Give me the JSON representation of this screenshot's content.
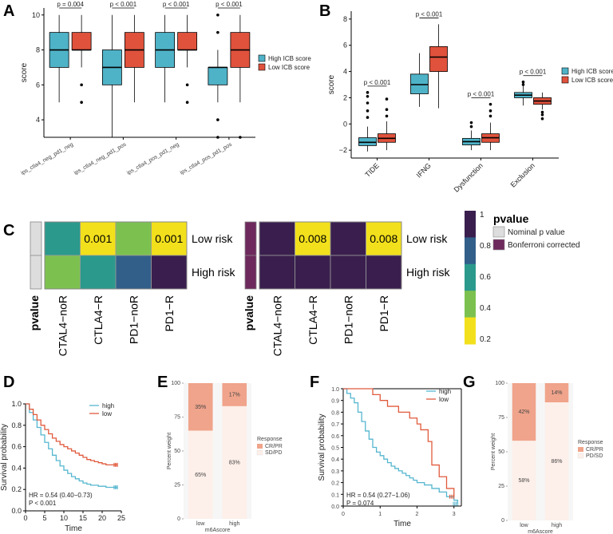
{
  "colors": {
    "high_icb": "#4fb3c8",
    "low_icb": "#e0523c",
    "km_high": "#55b6cf",
    "km_low": "#e05a3d",
    "crpr": "#f0a48b",
    "sdpd": "#fdefe9",
    "heat_yellow": "#f2e01c",
    "heat_green": "#7cc150",
    "heat_teal": "#2b9a8c",
    "heat_blue": "#325f8a",
    "heat_dark": "#3a1f4e",
    "pvalue_gray": "#dddddd",
    "pvalue_purple": "#6e2a5c"
  },
  "chart_data": [
    {
      "panel": "A",
      "type": "box",
      "ylabel": "score",
      "ylim": [
        3,
        10.4
      ],
      "yticks": [
        "4",
        "6",
        "8",
        "10"
      ],
      "categories": [
        "ips_ctla4_neg_pd1_neg",
        "ips_ctla4_neg_pd1_pos",
        "ips_ctla4_pos_pd1_neg",
        "ips_ctla4_pos_pd1_pos"
      ],
      "pvalues": [
        "p = 0.004",
        "p < 0.001",
        "p < 0.001",
        "p < 0.001"
      ],
      "legend": [
        "High ICB score",
        "Low ICB score"
      ],
      "series": [
        {
          "name": "High ICB score",
          "boxes": [
            {
              "min": 5,
              "q1": 7,
              "median": 8,
              "q3": 9,
              "max": 10,
              "outliers": []
            },
            {
              "min": 3,
              "q1": 6,
              "median": 7,
              "q3": 8,
              "max": 10,
              "outliers": []
            },
            {
              "min": 5,
              "q1": 7,
              "median": 8,
              "q3": 9,
              "max": 10,
              "outliers": []
            },
            {
              "min": 5,
              "q1": 6,
              "median": 7,
              "q3": 7,
              "max": 8,
              "outliers": [
                3,
                4,
                9,
                10
              ]
            }
          ]
        },
        {
          "name": "Low ICB score",
          "boxes": [
            {
              "min": 7,
              "q1": 8,
              "median": 8,
              "q3": 9,
              "max": 10,
              "outliers": [
                5,
                6
              ]
            },
            {
              "min": 5,
              "q1": 7,
              "median": 8,
              "q3": 9,
              "max": 10,
              "outliers": []
            },
            {
              "min": 7,
              "q1": 8,
              "median": 8,
              "q3": 9,
              "max": 10,
              "outliers": [
                5,
                6
              ]
            },
            {
              "min": 5,
              "q1": 7,
              "median": 8,
              "q3": 9,
              "max": 10,
              "outliers": [
                3
              ]
            }
          ]
        }
      ]
    },
    {
      "panel": "B",
      "type": "box",
      "ylabel": "score",
      "ylim": [
        -2.6,
        8.6
      ],
      "yticks": [
        "-2",
        "0",
        "2",
        "4",
        "6",
        "8"
      ],
      "categories": [
        "TIDE",
        "IFNG",
        "Dysfunction",
        "Exclusion"
      ],
      "pvalues": [
        "p < 0.001",
        "p < 0.001",
        "p < 0.001",
        "p < 0.001"
      ],
      "legend": [
        "High ICB score",
        "Low ICB score"
      ],
      "series": [
        {
          "name": "High ICB score",
          "boxes": [
            {
              "min": -2.1,
              "q1": -1.65,
              "median": -1.4,
              "q3": -1.05,
              "max": -0.2,
              "outliers": [
                0.5,
                1.0,
                1.6,
                2.1,
                2.4
              ]
            },
            {
              "min": 1.3,
              "q1": 2.3,
              "median": 3.0,
              "q3": 3.8,
              "max": 5.4,
              "outliers": []
            },
            {
              "min": -2.0,
              "q1": -1.6,
              "median": -1.35,
              "q3": -1.1,
              "max": -0.5,
              "outliers": [
                -0.2,
                0.1
              ]
            },
            {
              "min": 1.4,
              "q1": 2.0,
              "median": 2.2,
              "q3": 2.4,
              "max": 2.9,
              "outliers": [
                3.0,
                3.2
              ]
            }
          ]
        },
        {
          "name": "Low ICB score",
          "boxes": [
            {
              "min": -2.0,
              "q1": -1.4,
              "median": -1.1,
              "q3": -0.75,
              "max": 0.2,
              "outliers": [
                0.6,
                1.1,
                1.9
              ]
            },
            {
              "min": 1.2,
              "q1": 4.0,
              "median": 5.1,
              "q3": 5.9,
              "max": 7.6,
              "outliers": []
            },
            {
              "min": -2.0,
              "q1": -1.4,
              "median": -1.05,
              "q3": -0.75,
              "max": 0.1,
              "outliers": [
                0.6,
                1.0,
                1.5
              ]
            },
            {
              "min": 1.1,
              "q1": 1.5,
              "median": 1.75,
              "q3": 2.0,
              "max": 2.4,
              "outliers": [
                0.4,
                0.7,
                0.9
              ]
            }
          ]
        }
      ]
    },
    {
      "panel": "C",
      "type": "heatmap",
      "columns": [
        "CTAL4−noR",
        "CTLA4−R",
        "PD1−noR",
        "PD1−R"
      ],
      "rows": [
        "Low risk",
        "High risk"
      ],
      "annotation_label": "pvalue",
      "left": {
        "row_colors": [
          [
            "heat_teal",
            "heat_yellow",
            "heat_green",
            "heat_yellow"
          ],
          [
            "heat_green",
            "heat_teal",
            "heat_blue",
            "heat_dark"
          ]
        ],
        "cell_labels": [
          [
            "",
            "0.001",
            "",
            "0.001"
          ],
          [
            "",
            "",
            "",
            ""
          ]
        ]
      },
      "right": {
        "row_colors": [
          [
            "heat_dark",
            "heat_yellow",
            "heat_dark",
            "heat_yellow"
          ],
          [
            "heat_dark",
            "heat_dark",
            "heat_dark",
            "heat_dark"
          ]
        ],
        "cell_labels": [
          [
            "",
            "0.008",
            "",
            "0.008"
          ],
          [
            "",
            "",
            "",
            ""
          ]
        ]
      },
      "colorbar_ticks": [
        "1",
        "0.8",
        "0.6",
        "0.4",
        "0.2"
      ],
      "legend_title": "pvalue",
      "legend_items": [
        "Nominal p value",
        "Bonferroni corrected"
      ]
    },
    {
      "panel": "D",
      "type": "line",
      "xlabel": "Time",
      "ylabel": "Survival probability",
      "xlim": [
        0,
        25
      ],
      "ylim": [
        0,
        1.0
      ],
      "xticks": [
        "0",
        "5",
        "10",
        "15",
        "20",
        "25"
      ],
      "yticks": [
        "0.0",
        "0.2",
        "0.4",
        "0.6",
        "0.8",
        "1.0"
      ],
      "legend": [
        "high",
        "low"
      ],
      "annotation": [
        "HR = 0.54 (0.40−0.73)",
        "P < 0.001"
      ],
      "series": [
        {
          "name": "high",
          "x": [
            0,
            1,
            2,
            3,
            4,
            5,
            6,
            7,
            8,
            9,
            10,
            11,
            12,
            13,
            14,
            15,
            16,
            17,
            18,
            19,
            20,
            21,
            22,
            23,
            24
          ],
          "y": [
            1.0,
            0.92,
            0.85,
            0.78,
            0.71,
            0.64,
            0.58,
            0.52,
            0.47,
            0.42,
            0.38,
            0.35,
            0.32,
            0.3,
            0.28,
            0.26,
            0.25,
            0.24,
            0.24,
            0.23,
            0.23,
            0.22,
            0.22,
            0.22,
            0.22
          ]
        },
        {
          "name": "low",
          "x": [
            0,
            1,
            2,
            3,
            4,
            5,
            6,
            7,
            8,
            9,
            10,
            11,
            12,
            13,
            14,
            15,
            16,
            17,
            18,
            19,
            20,
            21,
            22,
            23,
            24
          ],
          "y": [
            1.0,
            0.95,
            0.9,
            0.85,
            0.8,
            0.76,
            0.72,
            0.68,
            0.65,
            0.62,
            0.6,
            0.58,
            0.56,
            0.54,
            0.52,
            0.5,
            0.48,
            0.47,
            0.46,
            0.45,
            0.44,
            0.43,
            0.43,
            0.43,
            0.43
          ]
        }
      ]
    },
    {
      "panel": "E",
      "type": "stacked-bar",
      "xlabel": "m6Ascore",
      "ylabel": "Percent weight",
      "categories": [
        "low",
        "high"
      ],
      "yticks": [
        "0",
        "25",
        "50",
        "75",
        "100"
      ],
      "legend_title": "Response",
      "legend": [
        "CR/PR",
        "SD/PD"
      ],
      "series": [
        {
          "name": "CR/PR",
          "values": [
            35,
            17
          ],
          "labels": [
            "35%",
            "17%"
          ]
        },
        {
          "name": "SD/PD",
          "values": [
            65,
            83
          ],
          "labels": [
            "65%",
            "83%"
          ]
        }
      ]
    },
    {
      "panel": "F",
      "type": "line",
      "xlabel": "Time",
      "ylabel": "Survival probability",
      "xlim": [
        0,
        3.2
      ],
      "ylim": [
        0,
        1.0
      ],
      "xticks": [
        "0",
        "1",
        "2",
        "3"
      ],
      "yticks": [
        "0.0",
        "0.1",
        "0.2",
        "0.3",
        "0.4",
        "0.5",
        "0.6",
        "0.7",
        "0.8",
        "0.9",
        "1.0"
      ],
      "legend": [
        "high",
        "low"
      ],
      "annotation": [
        "HR = 0.54 (0.27−1.06)",
        "P = 0.074"
      ],
      "series": [
        {
          "name": "high",
          "x": [
            0,
            0.1,
            0.2,
            0.3,
            0.4,
            0.5,
            0.6,
            0.7,
            0.8,
            0.9,
            1.0,
            1.1,
            1.2,
            1.3,
            1.4,
            1.5,
            1.6,
            1.7,
            1.8,
            1.9,
            2.0,
            2.2,
            2.4,
            2.6,
            2.8,
            3.0,
            3.1
          ],
          "y": [
            1.0,
            0.96,
            0.92,
            0.88,
            0.8,
            0.72,
            0.64,
            0.57,
            0.5,
            0.46,
            0.43,
            0.4,
            0.37,
            0.34,
            0.32,
            0.3,
            0.28,
            0.26,
            0.24,
            0.22,
            0.2,
            0.18,
            0.15,
            0.12,
            0.08,
            0.05,
            0.02
          ]
        },
        {
          "name": "low",
          "x": [
            0,
            0.5,
            0.8,
            1.0,
            1.2,
            1.5,
            1.8,
            2.0,
            2.1,
            2.3,
            2.4,
            2.6,
            2.8,
            3.0
          ],
          "y": [
            1.0,
            1.0,
            0.95,
            0.9,
            0.85,
            0.8,
            0.75,
            0.7,
            0.65,
            0.55,
            0.35,
            0.25,
            0.15,
            0.08
          ]
        }
      ]
    },
    {
      "panel": "G",
      "type": "stacked-bar",
      "xlabel": "m6Ascore",
      "ylabel": "Percent weight",
      "categories": [
        "low",
        "high"
      ],
      "yticks": [
        "0",
        "25",
        "50",
        "75",
        "100"
      ],
      "legend_title": "Response",
      "legend": [
        "CR/PR",
        "PD/SD"
      ],
      "series": [
        {
          "name": "CR/PR",
          "values": [
            42,
            14
          ],
          "labels": [
            "42%",
            "14%"
          ]
        },
        {
          "name": "PD/SD",
          "values": [
            58,
            86
          ],
          "labels": [
            "58%",
            "86%"
          ]
        }
      ]
    }
  ]
}
